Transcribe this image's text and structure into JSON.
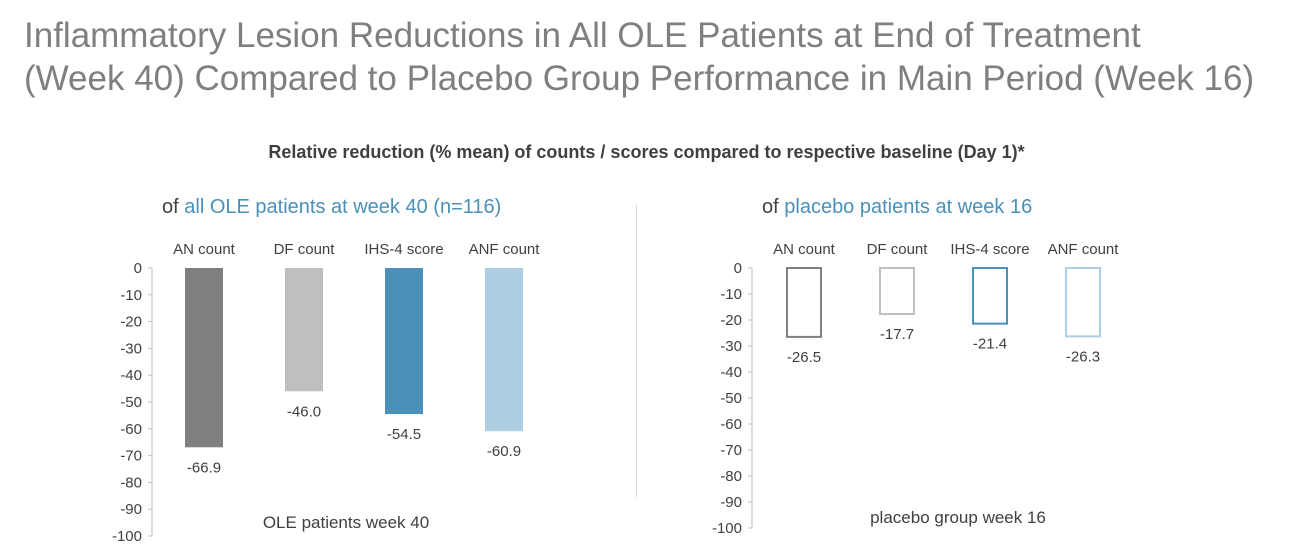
{
  "slide": {
    "title_line1": "Inflammatory Lesion Reductions in All OLE Patients at End of Treatment",
    "title_line2": "(Week 40) Compared to Placebo Group Performance in Main Period (Week 16)",
    "subtitle": "Relative reduction (% mean) of counts / scores compared to respective baseline (Day 1)*"
  },
  "colors": {
    "an": "#7f7f7f",
    "df": "#bfbfbf",
    "ihs4": "#4a90b8",
    "anf": "#aecfe3",
    "axis": "#bfbfbf",
    "text": "#404040"
  },
  "chart_data": [
    {
      "type": "bar",
      "heading_prefix": "of ",
      "heading_accent": "all OLE patients at week 40 (n=116)",
      "categories": [
        "AN count",
        "DF count",
        "IHS-4 score",
        "ANF count"
      ],
      "series": [
        {
          "name": "OLE patients week 40",
          "values": [
            -66.9,
            -46.0,
            -54.5,
            -60.9
          ],
          "style": "filled"
        }
      ],
      "value_labels": [
        "-66.9",
        "-46.0",
        "-54.5",
        "-60.9"
      ],
      "ylim": [
        -100,
        0
      ],
      "yticks": [
        0,
        -10,
        -20,
        -30,
        -40,
        -50,
        -60,
        -70,
        -80,
        -90,
        -100
      ],
      "xlabel": "OLE patients week 40",
      "ylabel": ""
    },
    {
      "type": "bar",
      "heading_prefix": "of ",
      "heading_accent": "placebo patients at week 16",
      "categories": [
        "AN count",
        "DF count",
        "IHS-4 score",
        "ANF count"
      ],
      "series": [
        {
          "name": "placebo group week 16",
          "values": [
            -26.5,
            -17.7,
            -21.4,
            -26.3
          ],
          "style": "outline"
        }
      ],
      "value_labels": [
        "-26.5",
        "-17.7",
        "-21.4",
        "-26.3"
      ],
      "ylim": [
        -100,
        0
      ],
      "yticks": [
        0,
        -10,
        -20,
        -30,
        -40,
        -50,
        -60,
        -70,
        -80,
        -90,
        -100
      ],
      "xlabel": "placebo group week 16",
      "ylabel": ""
    }
  ]
}
